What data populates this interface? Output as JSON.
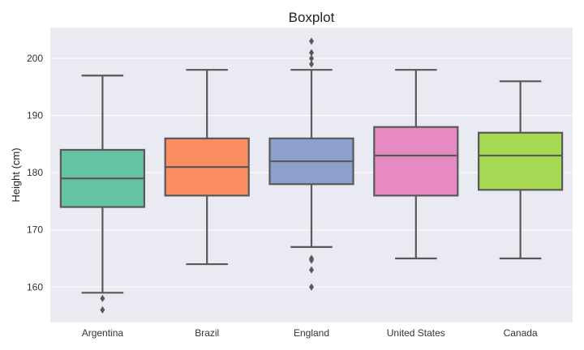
{
  "chart_data": {
    "type": "box",
    "title": "Boxplot",
    "xlabel": "",
    "ylabel": "Height (cm)",
    "ylim": [
      153.8,
      205.4
    ],
    "yticks": [
      160,
      170,
      180,
      190,
      200
    ],
    "grid": true,
    "background": "#eaeaf2",
    "categories": [
      "Argentina",
      "Brazil",
      "England",
      "United States",
      "Canada"
    ],
    "series": [
      {
        "name": "Argentina",
        "color": "#66c2a5",
        "whisker_low": 159,
        "q1": 174,
        "median": 179,
        "q3": 184,
        "whisker_high": 197,
        "outliers": [
          158,
          156
        ]
      },
      {
        "name": "Brazil",
        "color": "#fc8d62",
        "whisker_low": 164,
        "q1": 176,
        "median": 181,
        "q3": 186,
        "whisker_high": 198,
        "outliers": []
      },
      {
        "name": "England",
        "color": "#8da0cb",
        "whisker_low": 167,
        "q1": 178,
        "median": 182,
        "q3": 186,
        "whisker_high": 198,
        "outliers": [
          203,
          201,
          200,
          199,
          165,
          164.7,
          163,
          160
        ]
      },
      {
        "name": "United States",
        "color": "#e78ac3",
        "whisker_low": 165,
        "q1": 176,
        "median": 183,
        "q3": 188,
        "whisker_high": 198,
        "outliers": []
      },
      {
        "name": "Canada",
        "color": "#a6d854",
        "whisker_low": 165,
        "q1": 177,
        "median": 183,
        "q3": 187,
        "whisker_high": 196,
        "outliers": []
      }
    ]
  }
}
